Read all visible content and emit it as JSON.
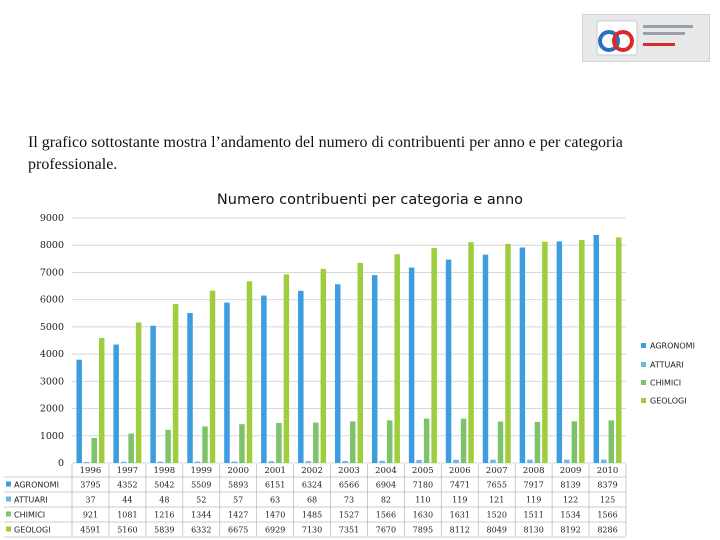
{
  "intro_text": "Il grafico sottostante mostra l’andamento del numero di contribuenti per anno e per categoria professionale.",
  "colors": {
    "AGRONOMI": "#3c9ee0",
    "ATTUARI": "#6fb6e6",
    "CHIMICI": "#7cc36b",
    "GEOLOGI": "#9fce3c"
  },
  "chart_data": {
    "type": "bar",
    "title": "Numero contribuenti per categoria e anno",
    "xlabel": "",
    "ylabel": "",
    "ylim": [
      0,
      9000
    ],
    "y_ticks": [
      0,
      1000,
      2000,
      3000,
      4000,
      5000,
      6000,
      7000,
      8000,
      9000
    ],
    "grid": true,
    "legend_position": "right",
    "categories": [
      "1996",
      "1997",
      "1998",
      "1999",
      "2000",
      "2001",
      "2002",
      "2003",
      "2004",
      "2005",
      "2006",
      "2007",
      "2008",
      "2009",
      "2010"
    ],
    "series": [
      {
        "name": "AGRONOMI",
        "values": [
          3795,
          4352,
          5042,
          5509,
          5893,
          6151,
          6324,
          6566,
          6904,
          7180,
          7471,
          7655,
          7917,
          8139,
          8379
        ]
      },
      {
        "name": "ATTUARI",
        "values": [
          37,
          44,
          48,
          52,
          57,
          63,
          68,
          73,
          82,
          110,
          119,
          121,
          119,
          122,
          125
        ]
      },
      {
        "name": "CHIMICI",
        "values": [
          921,
          1081,
          1216,
          1344,
          1427,
          1470,
          1485,
          1527,
          1566,
          1630,
          1631,
          1520,
          1511,
          1534,
          1566
        ]
      },
      {
        "name": "GEOLOGI",
        "values": [
          4591,
          5160,
          5839,
          6332,
          6675,
          6929,
          7130,
          7351,
          7670,
          7895,
          8112,
          8049,
          8130,
          8192,
          8286
        ]
      }
    ]
  }
}
